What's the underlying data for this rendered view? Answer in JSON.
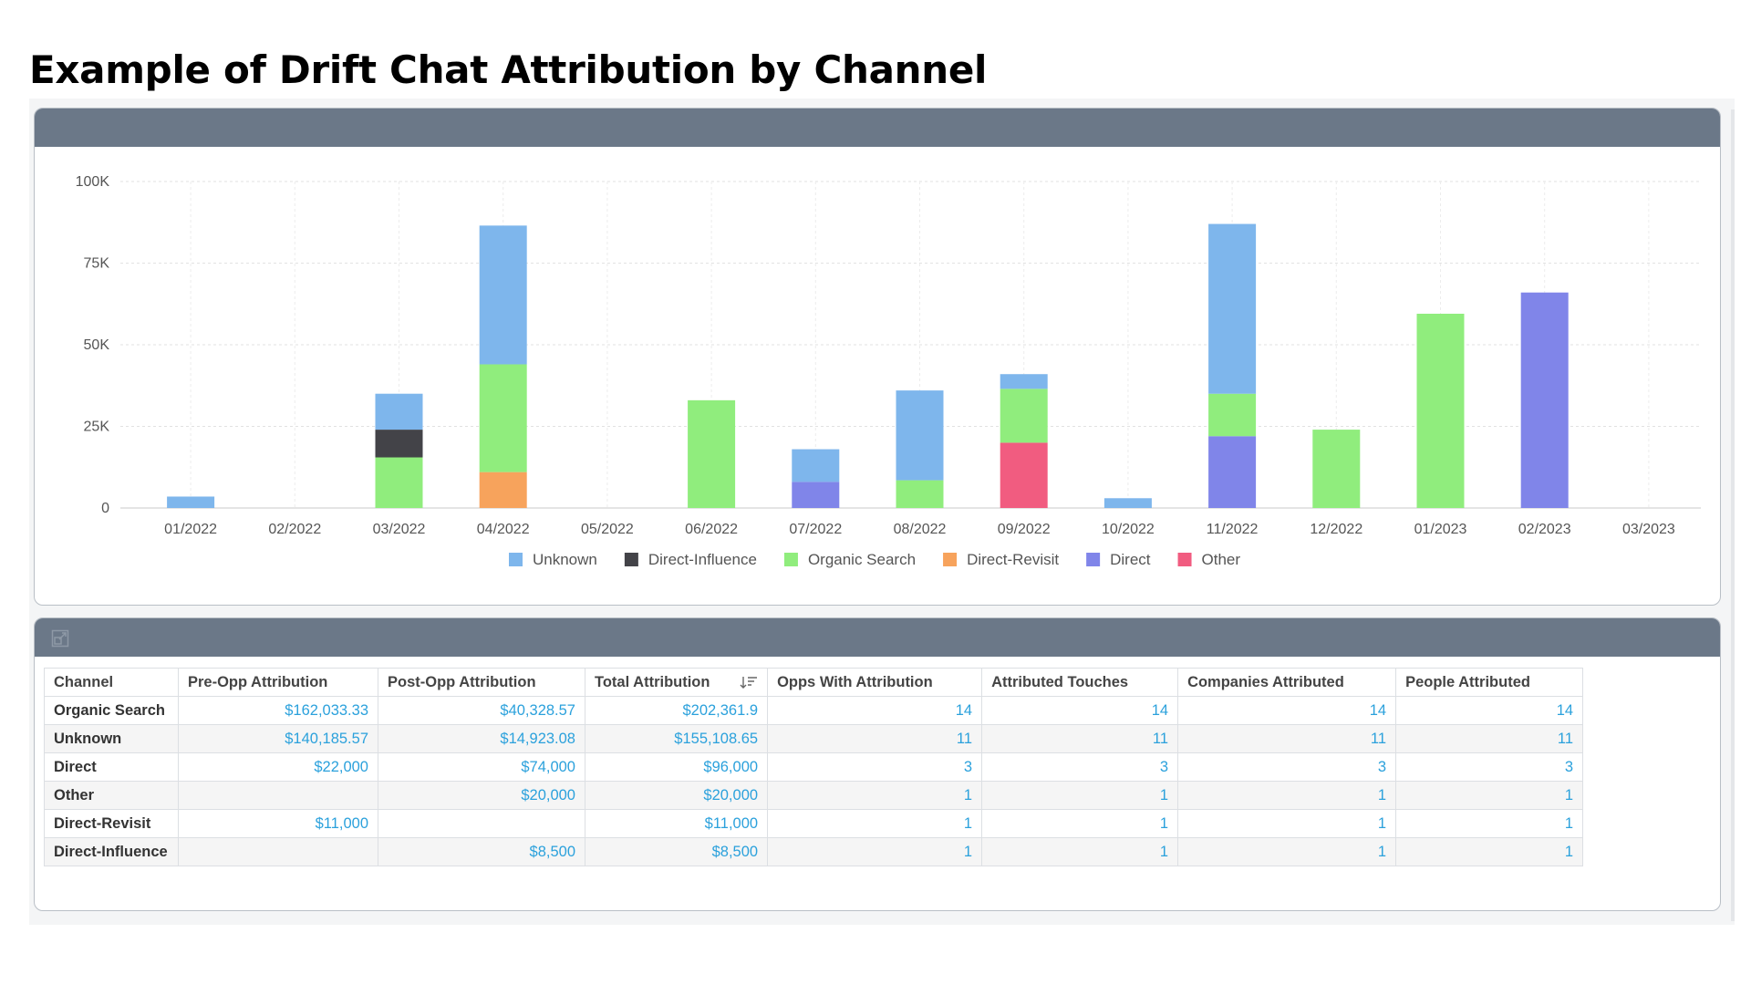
{
  "page": {
    "title": "Example of Drift Chat Attribution by Channel"
  },
  "colors": {
    "Unknown": "#7eb6ec",
    "Direct-Influence": "#434348",
    "Organic Search": "#90ed7d",
    "Direct-Revisit": "#f7a35c",
    "Direct": "#8085e9",
    "Other": "#f15c80",
    "header": "#6b7888",
    "link": "#2ba1dc"
  },
  "chart_data": {
    "type": "bar",
    "stacked": true,
    "categories": [
      "01/2022",
      "02/2022",
      "03/2022",
      "04/2022",
      "05/2022",
      "06/2022",
      "07/2022",
      "08/2022",
      "09/2022",
      "10/2022",
      "11/2022",
      "12/2022",
      "01/2023",
      "02/2023",
      "03/2023"
    ],
    "series": [
      {
        "name": "Direct-Revisit",
        "values": [
          0,
          0,
          0,
          11000,
          0,
          0,
          0,
          0,
          0,
          0,
          0,
          0,
          0,
          0,
          0
        ]
      },
      {
        "name": "Direct",
        "values": [
          0,
          0,
          0,
          0,
          0,
          0,
          8000,
          0,
          0,
          0,
          22000,
          0,
          0,
          66000,
          0
        ]
      },
      {
        "name": "Other",
        "values": [
          0,
          0,
          0,
          0,
          0,
          0,
          0,
          0,
          20000,
          0,
          0,
          0,
          0,
          0,
          0
        ]
      },
      {
        "name": "Organic Search",
        "values": [
          0,
          0,
          15500,
          33000,
          0,
          33000,
          0,
          8500,
          16500,
          0,
          13000,
          24000,
          59500,
          0,
          0
        ]
      },
      {
        "name": "Direct-Influence",
        "values": [
          0,
          0,
          8500,
          0,
          0,
          0,
          0,
          0,
          0,
          0,
          0,
          0,
          0,
          0,
          0
        ]
      },
      {
        "name": "Unknown",
        "values": [
          3500,
          0,
          11000,
          42500,
          0,
          0,
          10000,
          27500,
          4500,
          3000,
          52000,
          0,
          0,
          0,
          0
        ]
      }
    ],
    "legend": [
      "Unknown",
      "Direct-Influence",
      "Organic Search",
      "Direct-Revisit",
      "Direct",
      "Other"
    ],
    "yticks": [
      "0",
      "25K",
      "50K",
      "75K",
      "100K"
    ],
    "ylim": [
      0,
      100000
    ],
    "grid": true,
    "legend_position": "bottom"
  },
  "table": {
    "headers": [
      "Channel",
      "Pre-Opp Attribution",
      "Post-Opp Attribution",
      "Total Attribution",
      "Opps With Attribution",
      "Attributed Touches",
      "Companies Attributed",
      "People Attributed"
    ],
    "rows": [
      [
        "Organic Search",
        "$162,033.33",
        "$40,328.57",
        "$202,361.9",
        "14",
        "14",
        "14",
        "14"
      ],
      [
        "Unknown",
        "$140,185.57",
        "$14,923.08",
        "$155,108.65",
        "11",
        "11",
        "11",
        "11"
      ],
      [
        "Direct",
        "$22,000",
        "$74,000",
        "$96,000",
        "3",
        "3",
        "3",
        "3"
      ],
      [
        "Other",
        "",
        "$20,000",
        "$20,000",
        "1",
        "1",
        "1",
        "1"
      ],
      [
        "Direct-Revisit",
        "$11,000",
        "",
        "$11,000",
        "1",
        "1",
        "1",
        "1"
      ],
      [
        "Direct-Influence",
        "",
        "$8,500",
        "$8,500",
        "1",
        "1",
        "1",
        "1"
      ]
    ]
  }
}
